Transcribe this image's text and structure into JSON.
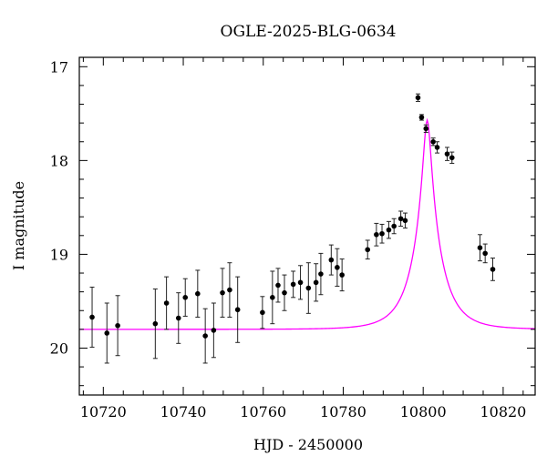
{
  "chart_data": {
    "type": "scatter",
    "title": "OGLE-2025-BLG-0634",
    "xlabel": "HJD - 2450000",
    "ylabel": "I magnitude",
    "xlim": [
      10714,
      10828
    ],
    "ylim": [
      20.5,
      16.9
    ],
    "y_inverted": true,
    "grid": false,
    "x_ticks_major": [
      10720,
      10740,
      10760,
      10780,
      10800,
      10820
    ],
    "x_tick_labels": [
      "10720",
      "10740",
      "10760",
      "10780",
      "10800",
      "10820"
    ],
    "x_ticks_minor_step": 5,
    "y_ticks_major": [
      17,
      18,
      19,
      20
    ],
    "y_tick_labels": [
      "17",
      "18",
      "19",
      "20"
    ],
    "y_ticks_minor_step": 0.2,
    "series": [
      {
        "kind": "points",
        "color": "#000000",
        "x": [
          10717.2,
          10720.9,
          10723.6,
          10733.0,
          10735.8,
          10738.8,
          10740.5,
          10743.6,
          10745.5,
          10747.6,
          10749.8,
          10751.6,
          10753.6,
          10759.8,
          10762.3,
          10763.7,
          10765.3,
          10767.5,
          10769.3,
          10771.3,
          10773.2,
          10774.4,
          10777.0,
          10778.5,
          10779.7,
          10786.1,
          10788.3,
          10789.7,
          10791.4,
          10792.7,
          10794.4,
          10795.5,
          10798.7,
          10799.6,
          10800.7,
          10802.5,
          10803.5,
          10806.0,
          10807.2,
          10814.2,
          10815.5,
          10817.4
        ],
        "y": [
          19.67,
          19.84,
          19.76,
          19.74,
          19.52,
          19.68,
          19.46,
          19.42,
          19.87,
          19.81,
          19.41,
          19.38,
          19.59,
          19.62,
          19.46,
          19.33,
          19.41,
          19.32,
          19.3,
          19.36,
          19.3,
          19.21,
          19.06,
          19.14,
          19.22,
          18.95,
          18.79,
          18.78,
          18.74,
          18.7,
          18.62,
          18.64,
          17.33,
          17.54,
          17.66,
          17.8,
          17.86,
          17.93,
          17.97,
          18.93,
          18.99,
          19.16
        ],
        "yerr": [
          0.32,
          0.32,
          0.32,
          0.37,
          0.28,
          0.27,
          0.2,
          0.25,
          0.29,
          0.29,
          0.26,
          0.29,
          0.35,
          0.17,
          0.28,
          0.18,
          0.19,
          0.14,
          0.18,
          0.27,
          0.2,
          0.22,
          0.16,
          0.2,
          0.17,
          0.1,
          0.12,
          0.1,
          0.09,
          0.08,
          0.08,
          0.08,
          0.04,
          0.03,
          0.04,
          0.04,
          0.06,
          0.07,
          0.06,
          0.14,
          0.1,
          0.12
        ]
      },
      {
        "kind": "model-curve",
        "color": "#ff00ff",
        "baseline_mag": 19.8,
        "peak_time": 10801.0,
        "peak_mag": 17.57,
        "einstein_time": 6.8,
        "impact_param": 0.133
      }
    ]
  }
}
